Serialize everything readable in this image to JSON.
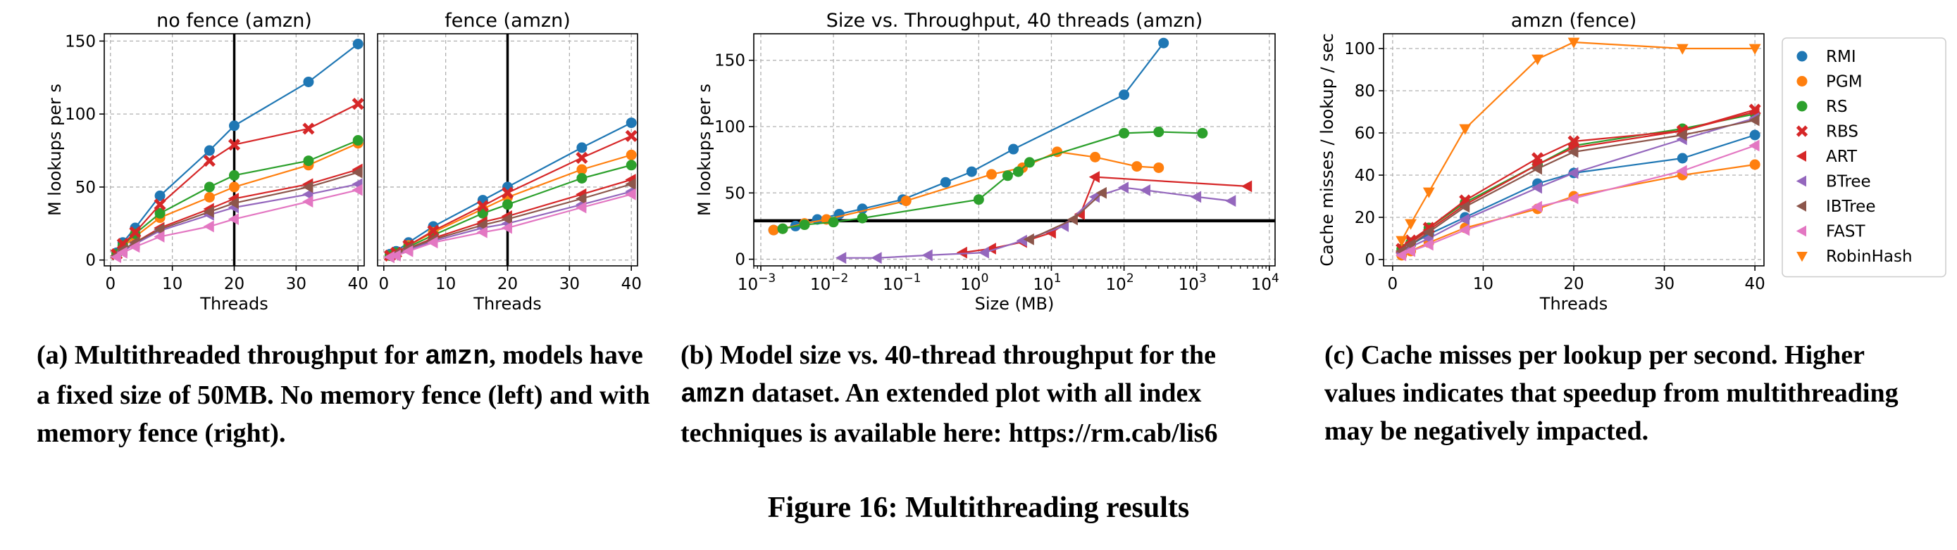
{
  "figure_title": "Figure 16: Multithreading results",
  "captions": {
    "a": {
      "label": "(a)",
      "pre": "Multithreaded throughput for ",
      "mono": "amzn",
      "post": ", models have a fixed size of 50MB. No memory fence (left) and with memory fence (right)."
    },
    "b": {
      "label": "(b)",
      "pre": "Model size vs. 40-thread throughput for the ",
      "mono": "amzn",
      "post": " dataset. An extended plot with all index techniques is available here: https://rm.cab/lis6"
    },
    "c": {
      "label": "(c)",
      "pre": "Cache misses per lookup per second. Higher values indicates that speedup from multithreading may be negatively impacted.",
      "mono": "",
      "post": ""
    }
  },
  "styles": {
    "RMI": {
      "color": "#1f77b4",
      "marker": "circle"
    },
    "PGM": {
      "color": "#ff7f0e",
      "marker": "circle"
    },
    "RS": {
      "color": "#2ca02c",
      "marker": "circle"
    },
    "RBS": {
      "color": "#d62728",
      "marker": "x"
    },
    "ART": {
      "color": "#d62728",
      "marker": "triangle-left"
    },
    "BTree": {
      "color": "#9467bd",
      "marker": "triangle-left"
    },
    "IBTree": {
      "color": "#8c564b",
      "marker": "triangle-left"
    },
    "FAST": {
      "color": "#e377c2",
      "marker": "triangle-left"
    },
    "RobinHash": {
      "color": "#ff7f0e",
      "marker": "triangle-down"
    }
  },
  "chart_data": [
    {
      "id": "a-left",
      "type": "line",
      "title": "no fence (amzn)",
      "xlabel": "Threads",
      "ylabel": "M lookups per s",
      "xlim": [
        -1,
        41
      ],
      "ylim": [
        -4,
        155
      ],
      "xticks": [
        0,
        10,
        20,
        30,
        40
      ],
      "yticks": [
        0,
        50,
        100,
        150
      ],
      "vline": 20,
      "grid": true,
      "x": [
        1,
        2,
        4,
        8,
        16,
        20,
        32,
        40
      ],
      "series": [
        {
          "name": "RMI",
          "values": [
            5,
            12,
            22,
            44,
            75,
            92,
            122,
            148
          ]
        },
        {
          "name": "PGM",
          "values": [
            4,
            9,
            16,
            29,
            43,
            50,
            65,
            80
          ]
        },
        {
          "name": "RS",
          "values": [
            4,
            10,
            18,
            32,
            50,
            58,
            68,
            82
          ]
        },
        {
          "name": "RBS",
          "values": [
            4,
            11,
            19,
            38,
            68,
            79,
            90,
            107
          ]
        },
        {
          "name": "ART",
          "values": [
            3,
            7,
            12,
            22,
            35,
            42,
            52,
            62
          ]
        },
        {
          "name": "BTree",
          "values": [
            3,
            6,
            11,
            20,
            31,
            36,
            45,
            52
          ]
        },
        {
          "name": "IBTree",
          "values": [
            3,
            7,
            12,
            21,
            33,
            39,
            50,
            60
          ]
        },
        {
          "name": "FAST",
          "values": [
            2,
            5,
            9,
            16,
            23,
            28,
            40,
            48
          ]
        }
      ]
    },
    {
      "id": "a-right",
      "type": "line",
      "title": "fence (amzn)",
      "xlabel": "Threads",
      "ylabel": "",
      "xlim": [
        -1,
        41
      ],
      "ylim": [
        -4,
        155
      ],
      "xticks": [
        0,
        10,
        20,
        30,
        40
      ],
      "yticks": [],
      "vline": 20,
      "grid": true,
      "x": [
        1,
        2,
        4,
        8,
        16,
        20,
        32,
        40
      ],
      "series": [
        {
          "name": "RMI",
          "values": [
            4,
            6,
            12,
            23,
            41,
            50,
            77,
            94
          ]
        },
        {
          "name": "PGM",
          "values": [
            3,
            5,
            10,
            19,
            35,
            43,
            62,
            72
          ]
        },
        {
          "name": "RS",
          "values": [
            3,
            5,
            9,
            17,
            32,
            38,
            56,
            65
          ]
        },
        {
          "name": "RBS",
          "values": [
            3,
            5,
            10,
            20,
            37,
            46,
            70,
            85
          ]
        },
        {
          "name": "ART",
          "values": [
            2,
            4,
            8,
            15,
            26,
            30,
            45,
            55
          ]
        },
        {
          "name": "BTree",
          "values": [
            2,
            4,
            7,
            13,
            22,
            25,
            38,
            47
          ]
        },
        {
          "name": "IBTree",
          "values": [
            2,
            4,
            8,
            14,
            24,
            28,
            42,
            52
          ]
        },
        {
          "name": "FAST",
          "values": [
            2,
            3,
            6,
            12,
            19,
            22,
            36,
            45
          ]
        }
      ]
    },
    {
      "id": "b",
      "type": "scatter",
      "title": "Size vs. Throughput, 40 threads (amzn)",
      "xlabel": "Size (MB)",
      "ylabel": "M lookups per s",
      "xscale": "log",
      "xlim": [
        0.0008,
        12000
      ],
      "ylim": [
        -5,
        170
      ],
      "xticks": [
        0.001,
        0.01,
        0.1,
        1,
        10,
        100,
        1000,
        10000
      ],
      "xtick_labels": [
        [
          "10",
          "−3"
        ],
        [
          "10",
          "−2"
        ],
        [
          "10",
          "−1"
        ],
        [
          "10",
          "0"
        ],
        [
          "10",
          "1"
        ],
        [
          "10",
          "2"
        ],
        [
          "10",
          "3"
        ],
        [
          "10",
          "4"
        ]
      ],
      "yticks": [
        0,
        50,
        100,
        150
      ],
      "hline": 29,
      "grid": true,
      "series": [
        {
          "name": "RMI",
          "x": [
            0.0015,
            0.003,
            0.006,
            0.012,
            0.025,
            0.09,
            0.35,
            0.8,
            3,
            100,
            350
          ],
          "y": [
            22,
            25,
            30,
            34,
            38,
            45,
            58,
            66,
            83,
            124,
            163
          ]
        },
        {
          "name": "PGM",
          "x": [
            0.0015,
            0.002,
            0.004,
            0.008,
            0.1,
            1.5,
            4,
            12,
            40,
            150,
            300
          ],
          "y": [
            22,
            23,
            27,
            30,
            44,
            64,
            69,
            81,
            77,
            70,
            69
          ]
        },
        {
          "name": "RS",
          "x": [
            0.002,
            0.004,
            0.01,
            0.025,
            1,
            2.5,
            3.5,
            5,
            100,
            300,
            1200
          ],
          "y": [
            23,
            26,
            28,
            31,
            45,
            63,
            66,
            73,
            95,
            96,
            95
          ]
        },
        {
          "name": "ART",
          "x": [
            0.6,
            1.5,
            4,
            10,
            25,
            40,
            5000
          ],
          "y": [
            5,
            8,
            13,
            20,
            34,
            62,
            55
          ]
        },
        {
          "name": "BTree",
          "x": [
            0.013,
            0.04,
            0.2,
            1.2,
            4,
            15,
            40,
            100,
            200,
            1000,
            3000
          ],
          "y": [
            1,
            1,
            3,
            5,
            14,
            25,
            47,
            54,
            52,
            47,
            44
          ]
        },
        {
          "name": "IBTree",
          "x": [
            5,
            20,
            50
          ],
          "y": [
            15,
            30,
            50
          ]
        }
      ]
    },
    {
      "id": "c",
      "type": "line",
      "title": "amzn (fence)",
      "xlabel": "Threads",
      "ylabel": "Cache misses / lookup / sec",
      "xlim": [
        -1,
        41
      ],
      "ylim": [
        -3,
        107
      ],
      "xticks": [
        0,
        10,
        20,
        30,
        40
      ],
      "yticks": [
        0,
        20,
        40,
        60,
        80,
        100
      ],
      "grid": true,
      "legend": "outside-right",
      "x": [
        1,
        2,
        4,
        8,
        16,
        20,
        32,
        40
      ],
      "series": [
        {
          "name": "RMI",
          "values": [
            4,
            7,
            12,
            20,
            36,
            41,
            48,
            59
          ]
        },
        {
          "name": "PGM",
          "values": [
            2,
            4,
            8,
            15,
            24,
            30,
            40,
            45
          ]
        },
        {
          "name": "RS",
          "values": [
            5,
            8,
            15,
            27,
            45,
            54,
            62,
            69
          ]
        },
        {
          "name": "RBS",
          "values": [
            5,
            9,
            15,
            28,
            48,
            56,
            61,
            71
          ]
        },
        {
          "name": "ART",
          "values": [
            4,
            8,
            14,
            26,
            45,
            53,
            61,
            70
          ]
        },
        {
          "name": "BTree",
          "values": [
            3,
            6,
            10,
            19,
            34,
            41,
            57,
            67
          ]
        },
        {
          "name": "IBTree",
          "values": [
            4,
            7,
            13,
            25,
            43,
            51,
            59,
            66
          ]
        },
        {
          "name": "FAST",
          "values": [
            2,
            4,
            7,
            14,
            25,
            29,
            42,
            54
          ]
        },
        {
          "name": "RobinHash",
          "values": [
            9,
            17,
            32,
            62,
            95,
            103,
            100,
            100
          ]
        }
      ]
    }
  ]
}
